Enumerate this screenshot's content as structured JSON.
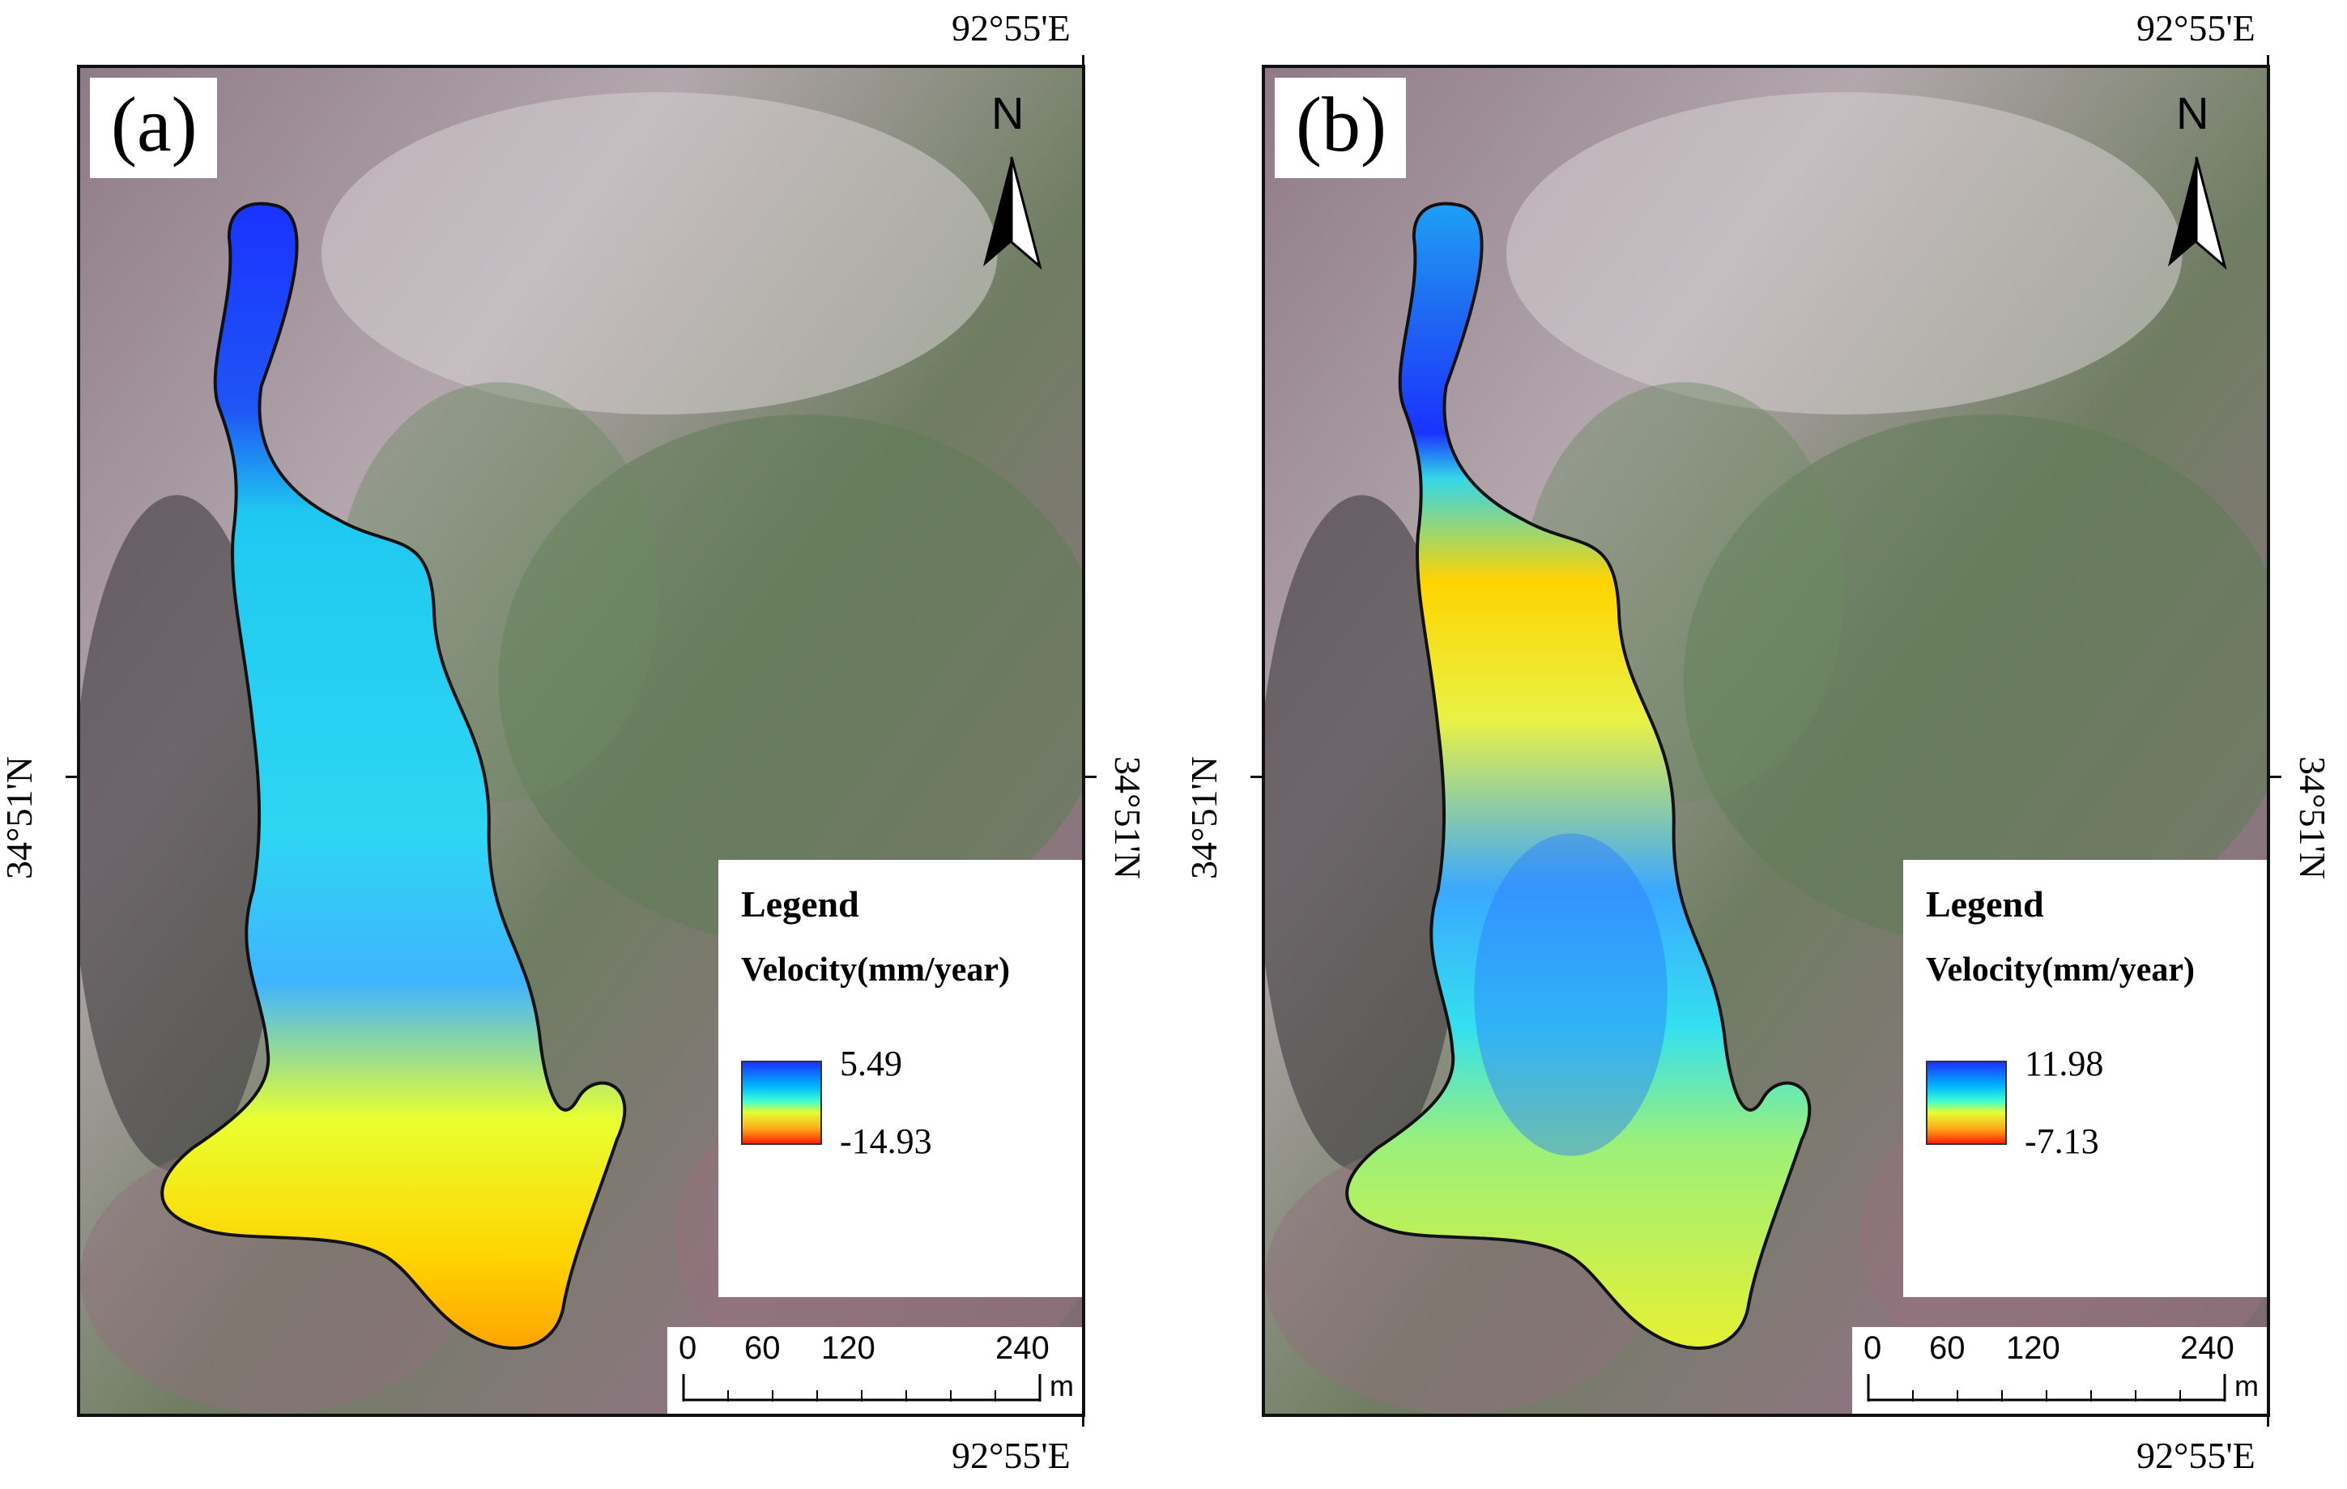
{
  "figure": {
    "panels": [
      {
        "label": "(a)",
        "coord_top": "92°55'E",
        "coord_bottom": "92°55'E",
        "coord_left": "34°51'N",
        "coord_right": "34°51'N",
        "north_label": "N",
        "legend": {
          "title": "Legend",
          "subtitle": "Velocity(mm/year)",
          "max": "5.49",
          "min": "-14.93"
        },
        "scale": {
          "ticks": [
            "0",
            "60",
            "120",
            "240"
          ],
          "unit": "m"
        }
      },
      {
        "label": "(b)",
        "coord_top": "92°55'E",
        "coord_bottom": "92°55'E",
        "coord_left": "34°51'N",
        "coord_right": "34°51'N",
        "north_label": "N",
        "legend": {
          "title": "Legend",
          "subtitle": "Velocity(mm/year)",
          "max": "11.98",
          "min": "-7.13"
        },
        "scale": {
          "ticks": [
            "0",
            "60",
            "120",
            "240"
          ],
          "unit": "m"
        }
      }
    ],
    "colors": {
      "velocity_high": "#1a33ff",
      "velocity_mid": "#3fffd0",
      "velocity_low": "#ff2000",
      "outline": "#111111"
    }
  }
}
